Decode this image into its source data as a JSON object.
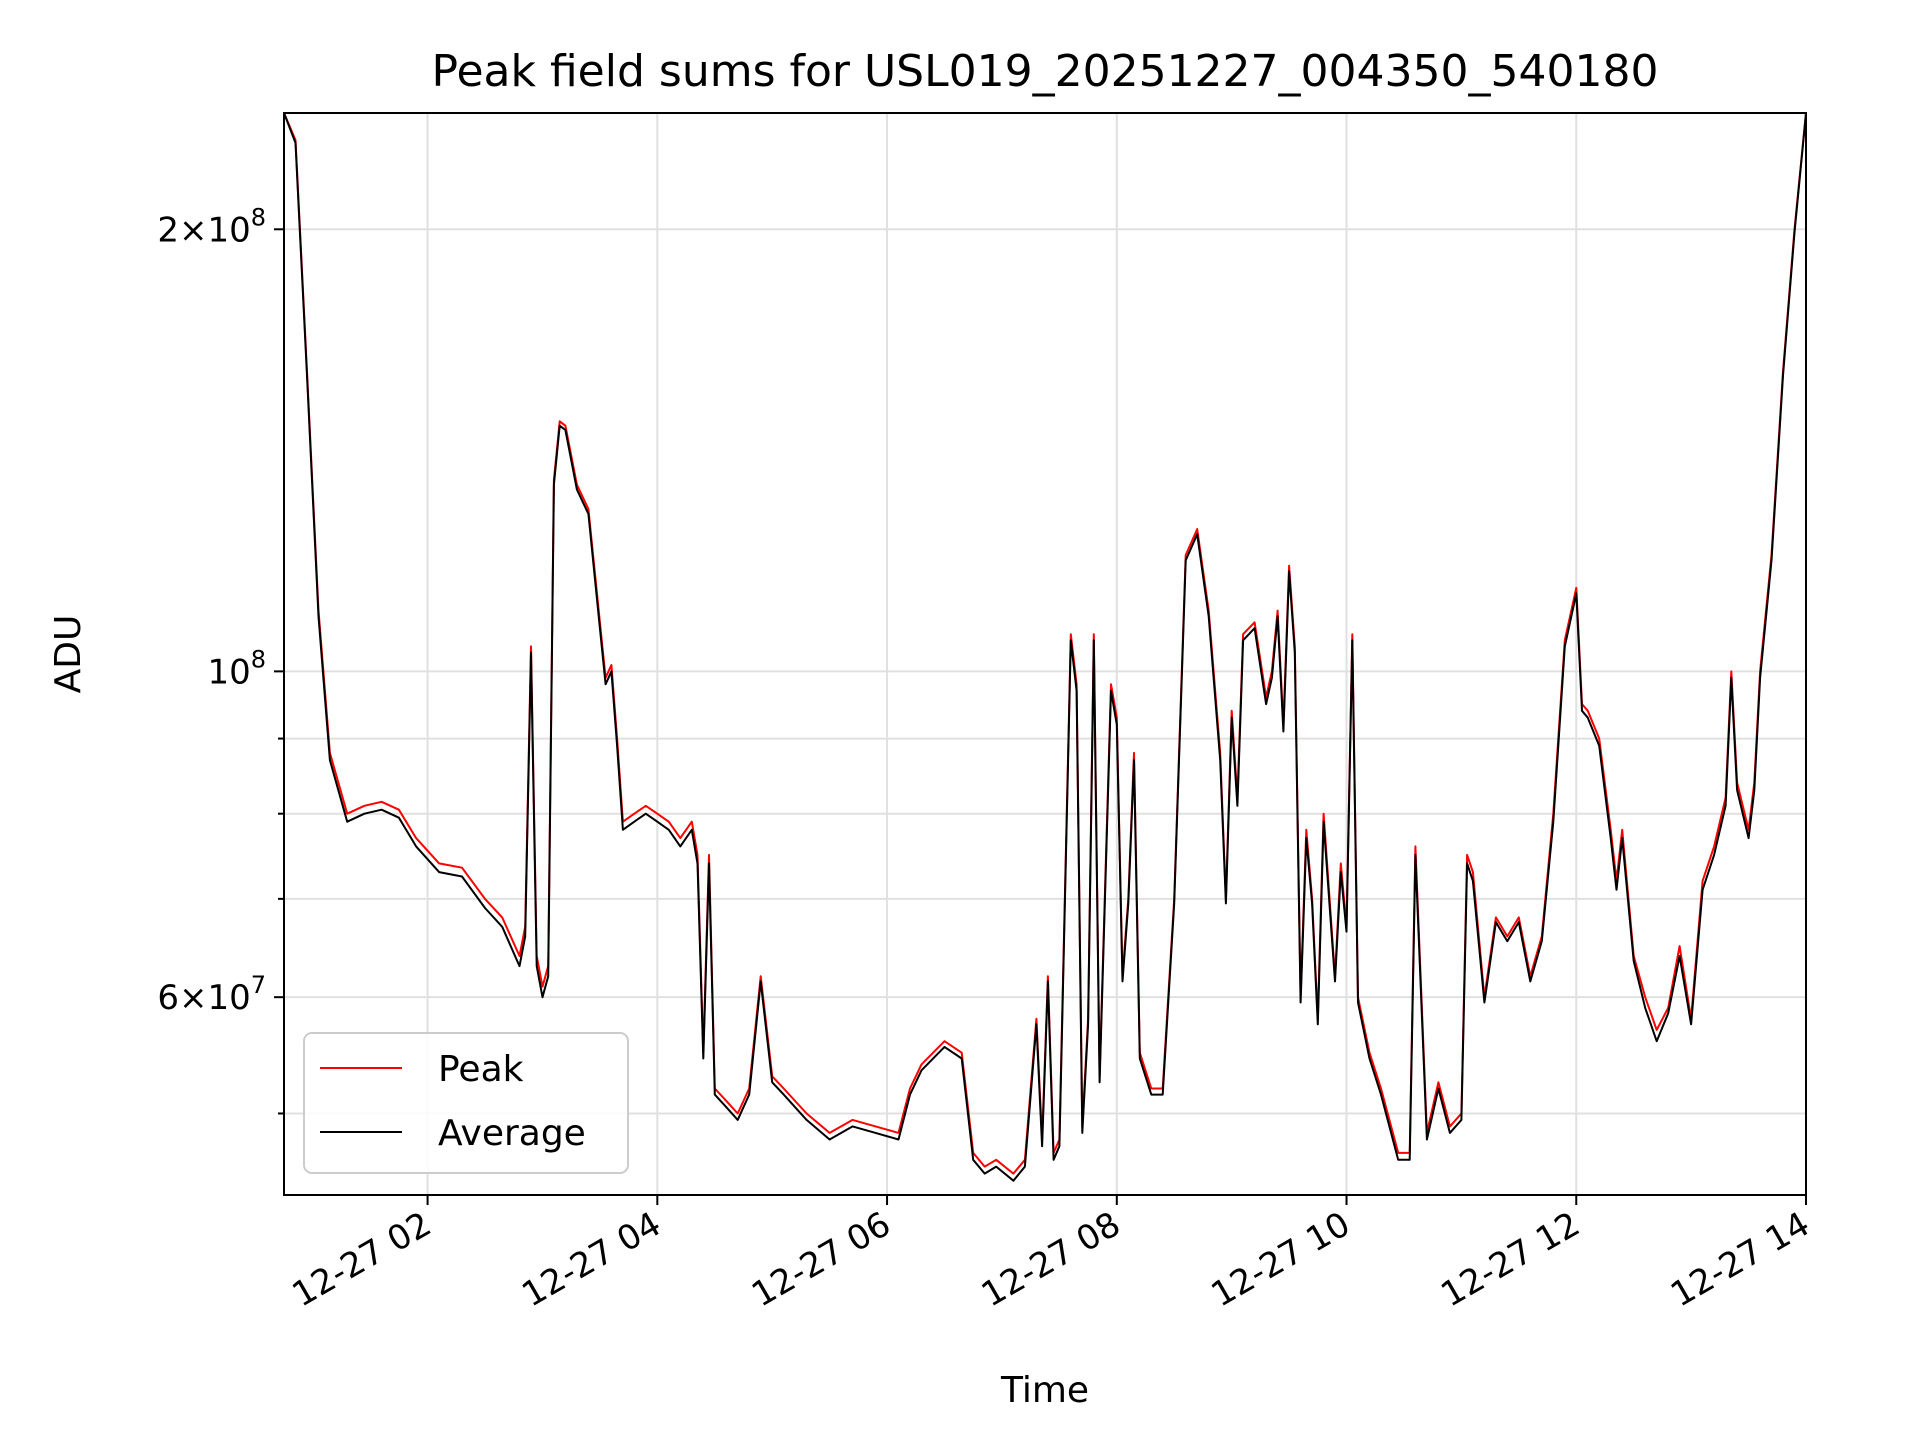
{
  "chart_data": {
    "type": "line",
    "title": "Peak field sums for USL019_20251227_004350_540180",
    "xlabel": "Time",
    "ylabel": "ADU",
    "yscale": "log",
    "ylim": [
      44000000,
      240000000
    ],
    "xlim_hours": [
      0.75,
      14.0
    ],
    "x_ticks": [
      {
        "hour": 2,
        "label": "12-27 02"
      },
      {
        "hour": 4,
        "label": "12-27 04"
      },
      {
        "hour": 6,
        "label": "12-27 06"
      },
      {
        "hour": 8,
        "label": "12-27 08"
      },
      {
        "hour": 10,
        "label": "12-27 10"
      },
      {
        "hour": 12,
        "label": "12-27 12"
      },
      {
        "hour": 14,
        "label": "12-27 14"
      }
    ],
    "y_major_ticks": [
      {
        "value": 60000000,
        "mantissa": "6",
        "exponent": "7"
      },
      {
        "value": 100000000,
        "mantissa": "",
        "exponent": "8"
      },
      {
        "value": 200000000,
        "mantissa": "2",
        "exponent": "8"
      }
    ],
    "y_minor_ticks": [
      50000000,
      70000000,
      80000000,
      90000000
    ],
    "grid": true,
    "legend": {
      "position": "lower-left"
    },
    "series": [
      {
        "name": "Peak",
        "color": "#ff0000",
        "x_hours": [
          0.75,
          0.85,
          0.95,
          1.05,
          1.15,
          1.3,
          1.45,
          1.6,
          1.75,
          1.9,
          2.1,
          2.3,
          2.5,
          2.65,
          2.8,
          2.85,
          2.9,
          2.95,
          3.0,
          3.05,
          3.1,
          3.15,
          3.2,
          3.3,
          3.4,
          3.5,
          3.55,
          3.6,
          3.65,
          3.7,
          3.8,
          3.9,
          4.0,
          4.1,
          4.2,
          4.3,
          4.35,
          4.4,
          4.45,
          4.5,
          4.6,
          4.7,
          4.8,
          4.9,
          5.0,
          5.1,
          5.3,
          5.5,
          5.7,
          5.9,
          6.1,
          6.2,
          6.3,
          6.5,
          6.65,
          6.75,
          6.85,
          6.95,
          7.1,
          7.2,
          7.3,
          7.35,
          7.4,
          7.45,
          7.5,
          7.6,
          7.65,
          7.7,
          7.75,
          7.8,
          7.85,
          7.95,
          8.0,
          8.05,
          8.1,
          8.15,
          8.2,
          8.3,
          8.4,
          8.5,
          8.6,
          8.7,
          8.8,
          8.9,
          8.95,
          9.0,
          9.05,
          9.1,
          9.2,
          9.3,
          9.35,
          9.4,
          9.45,
          9.5,
          9.55,
          9.6,
          9.65,
          9.7,
          9.75,
          9.8,
          9.9,
          9.95,
          10.0,
          10.05,
          10.1,
          10.2,
          10.3,
          10.45,
          10.55,
          10.6,
          10.7,
          10.8,
          10.9,
          11.0,
          11.05,
          11.1,
          11.2,
          11.3,
          11.4,
          11.5,
          11.6,
          11.7,
          11.8,
          11.9,
          12.0,
          12.05,
          12.1,
          12.2,
          12.3,
          12.35,
          12.4,
          12.5,
          12.6,
          12.7,
          12.8,
          12.9,
          13.0,
          13.1,
          13.2,
          13.3,
          13.35,
          13.4,
          13.5,
          13.55,
          13.6,
          13.7,
          13.8,
          13.9,
          14.0
        ],
        "values": [
          240000000,
          230000000,
          160000000,
          110000000,
          88000000,
          80000000,
          81000000,
          81500000,
          80500000,
          77000000,
          74000000,
          73500000,
          70000000,
          68000000,
          64000000,
          67000000,
          104000000,
          64000000,
          61000000,
          63000000,
          135000000,
          148000000,
          147000000,
          134000000,
          129000000,
          108000000,
          99000000,
          101000000,
          90000000,
          79000000,
          80000000,
          81000000,
          80000000,
          79000000,
          77000000,
          79000000,
          75000000,
          55000000,
          75000000,
          52000000,
          51000000,
          50000000,
          52000000,
          62000000,
          53000000,
          52000000,
          50000000,
          48500000,
          49500000,
          49000000,
          48500000,
          52000000,
          54000000,
          56000000,
          55000000,
          47000000,
          46000000,
          46500000,
          45500000,
          46500000,
          58000000,
          48000000,
          62000000,
          47000000,
          48000000,
          106000000,
          98000000,
          49000000,
          58000000,
          106000000,
          53000000,
          98000000,
          93000000,
          62000000,
          70000000,
          88000000,
          55000000,
          52000000,
          52000000,
          70000000,
          120000000,
          125000000,
          110000000,
          88000000,
          70000000,
          94000000,
          82000000,
          106000000,
          108000000,
          96000000,
          100000000,
          110000000,
          92000000,
          118000000,
          104000000,
          60000000,
          78000000,
          70000000,
          58000000,
          80000000,
          62000000,
          74000000,
          67000000,
          106000000,
          60000000,
          55000000,
          52000000,
          47000000,
          47000000,
          76000000,
          48500000,
          52500000,
          49000000,
          50000000,
          75000000,
          73000000,
          60000000,
          68000000,
          66000000,
          68000000,
          62000000,
          66000000,
          80000000,
          105000000,
          114000000,
          95000000,
          94000000,
          90000000,
          78000000,
          72000000,
          78000000,
          64000000,
          60000000,
          57000000,
          59000000,
          65000000,
          58000000,
          72000000,
          76000000,
          82000000,
          100000000,
          84000000,
          78000000,
          84000000,
          100000000,
          120000000,
          160000000,
          200000000,
          240000000
        ]
      },
      {
        "name": "Average",
        "color": "#000000",
        "x_hours": [
          0.75,
          0.85,
          0.95,
          1.05,
          1.15,
          1.3,
          1.45,
          1.6,
          1.75,
          1.9,
          2.1,
          2.3,
          2.5,
          2.65,
          2.8,
          2.85,
          2.9,
          2.95,
          3.0,
          3.05,
          3.1,
          3.15,
          3.2,
          3.3,
          3.4,
          3.5,
          3.55,
          3.6,
          3.65,
          3.7,
          3.8,
          3.9,
          4.0,
          4.1,
          4.2,
          4.3,
          4.35,
          4.4,
          4.45,
          4.5,
          4.6,
          4.7,
          4.8,
          4.9,
          5.0,
          5.1,
          5.3,
          5.5,
          5.7,
          5.9,
          6.1,
          6.2,
          6.3,
          6.5,
          6.65,
          6.75,
          6.85,
          6.95,
          7.1,
          7.2,
          7.3,
          7.35,
          7.4,
          7.45,
          7.5,
          7.6,
          7.65,
          7.7,
          7.75,
          7.8,
          7.85,
          7.95,
          8.0,
          8.05,
          8.1,
          8.15,
          8.2,
          8.3,
          8.4,
          8.5,
          8.6,
          8.7,
          8.8,
          8.9,
          8.95,
          9.0,
          9.05,
          9.1,
          9.2,
          9.3,
          9.35,
          9.4,
          9.45,
          9.5,
          9.55,
          9.6,
          9.65,
          9.7,
          9.75,
          9.8,
          9.9,
          9.95,
          10.0,
          10.05,
          10.1,
          10.2,
          10.3,
          10.45,
          10.55,
          10.6,
          10.7,
          10.8,
          10.9,
          11.0,
          11.05,
          11.1,
          11.2,
          11.3,
          11.4,
          11.5,
          11.6,
          11.7,
          11.8,
          11.9,
          12.0,
          12.05,
          12.1,
          12.2,
          12.3,
          12.35,
          12.4,
          12.5,
          12.6,
          12.7,
          12.8,
          12.9,
          13.0,
          13.1,
          13.2,
          13.3,
          13.35,
          13.4,
          13.5,
          13.55,
          13.6,
          13.7,
          13.8,
          13.9,
          14.0
        ],
        "values": [
          240000000,
          229000000,
          159000000,
          109000000,
          87000000,
          79000000,
          80000000,
          80500000,
          79500000,
          76000000,
          73000000,
          72500000,
          69000000,
          67000000,
          63000000,
          66000000,
          103000000,
          63000000,
          60000000,
          62000000,
          134000000,
          147000000,
          146000000,
          133000000,
          128000000,
          107000000,
          98000000,
          100000000,
          89000000,
          78000000,
          79000000,
          80000000,
          79000000,
          78000000,
          76000000,
          78000000,
          74000000,
          54500000,
          74000000,
          51500000,
          50500000,
          49500000,
          51500000,
          61500000,
          52500000,
          51500000,
          49500000,
          48000000,
          49000000,
          48500000,
          48000000,
          51500000,
          53500000,
          55500000,
          54500000,
          46500000,
          45500000,
          46000000,
          45000000,
          46000000,
          57500000,
          47500000,
          61500000,
          46500000,
          47500000,
          105000000,
          97000000,
          48500000,
          57500000,
          105000000,
          52500000,
          97000000,
          92000000,
          61500000,
          69500000,
          87000000,
          54500000,
          51500000,
          51500000,
          69500000,
          119000000,
          124000000,
          109000000,
          87000000,
          69500000,
          93000000,
          81000000,
          105000000,
          107000000,
          95000000,
          99000000,
          109000000,
          91000000,
          117000000,
          103000000,
          59500000,
          77000000,
          69500000,
          57500000,
          79000000,
          61500000,
          73000000,
          66500000,
          105000000,
          59500000,
          54500000,
          51500000,
          46500000,
          46500000,
          75000000,
          48000000,
          52000000,
          48500000,
          49500000,
          74000000,
          72000000,
          59500000,
          67500000,
          65500000,
          67500000,
          61500000,
          65500000,
          79000000,
          104000000,
          113000000,
          94000000,
          93000000,
          89000000,
          77000000,
          71000000,
          77000000,
          63500000,
          59000000,
          56000000,
          58500000,
          64000000,
          57500000,
          71000000,
          75000000,
          81000000,
          99000000,
          83000000,
          77000000,
          83000000,
          99000000,
          119000000,
          159000000,
          199000000,
          240000000
        ]
      }
    ]
  }
}
